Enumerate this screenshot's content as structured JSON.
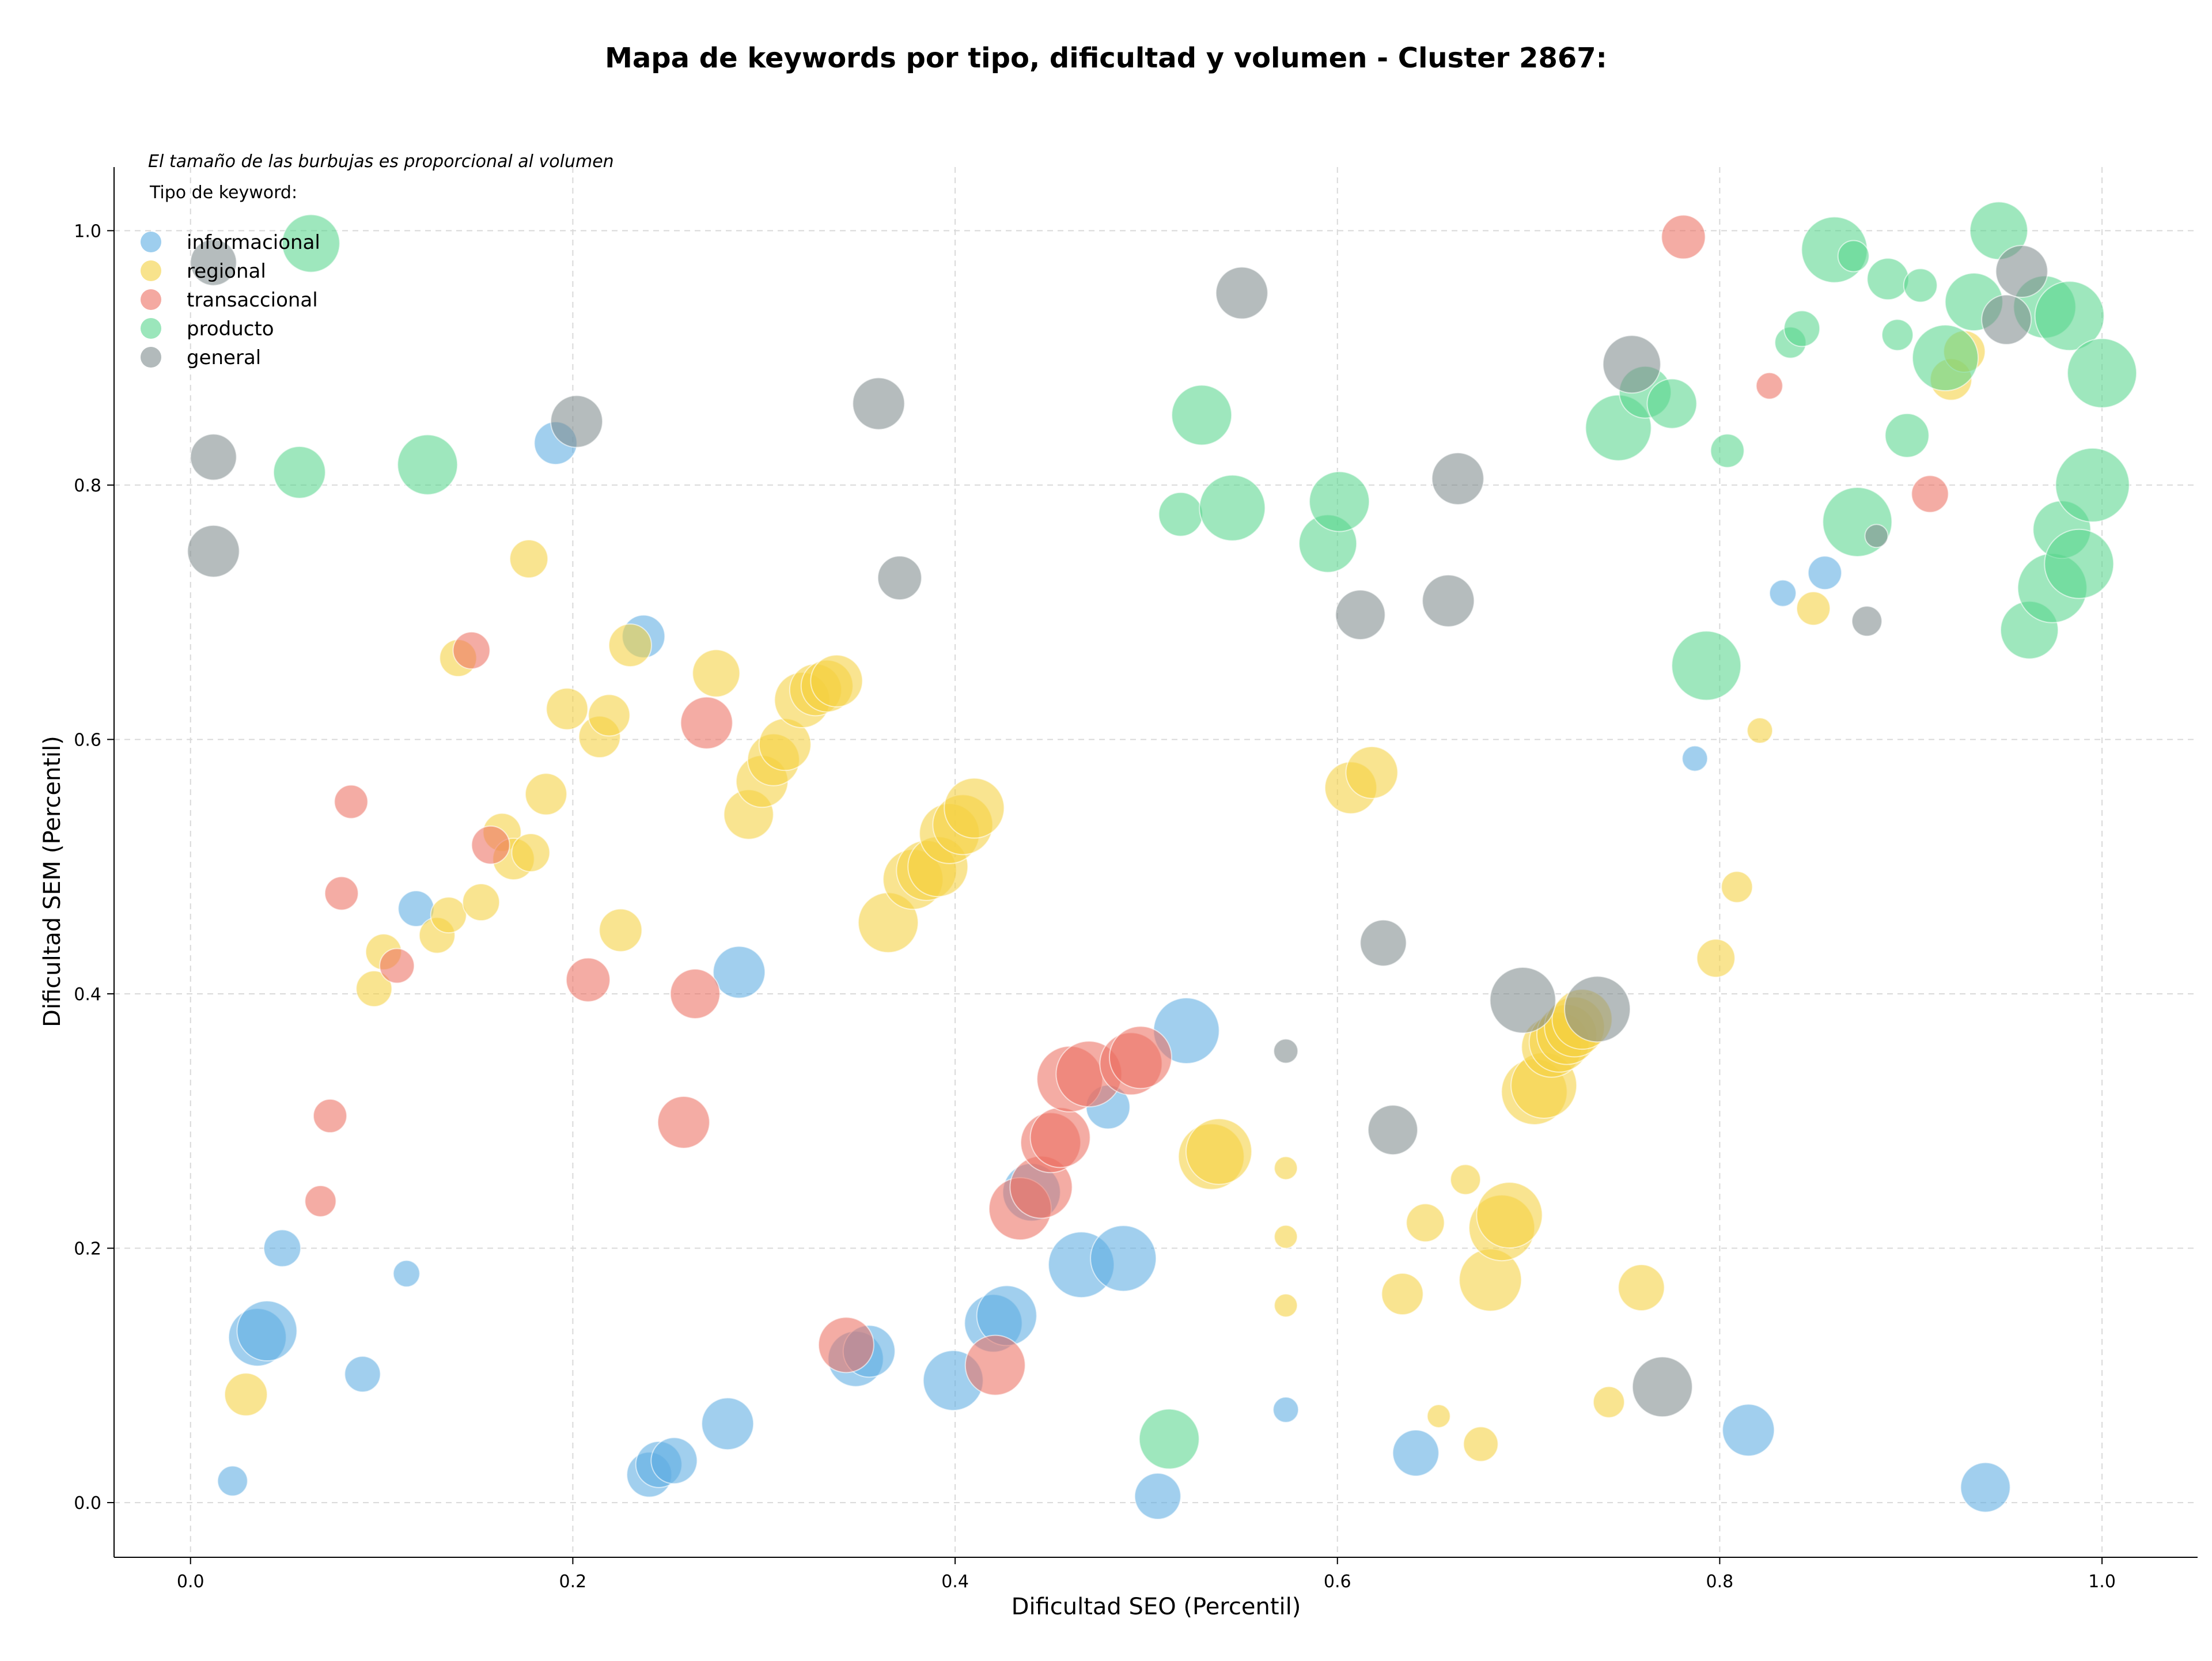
{
  "chart_data": {
    "type": "scatter",
    "title": "Mapa de keywords por tipo, dificultad y volumen - Cluster 2867:",
    "xlabel": "Dificultad SEO (Percentil)",
    "ylabel": "Dificultad SEM (Percentil)",
    "xlim": [
      -0.04,
      1.05
    ],
    "ylim": [
      -0.043,
      1.05
    ],
    "xticks": [
      0.0,
      0.2,
      0.4,
      0.6,
      0.8,
      1.0
    ],
    "yticks": [
      0.0,
      0.2,
      0.4,
      0.6,
      0.8,
      1.0
    ],
    "xtick_labels": [
      "0.0",
      "0.2",
      "0.4",
      "0.6",
      "0.8",
      "1.0"
    ],
    "ytick_labels": [
      "0.0",
      "0.2",
      "0.4",
      "0.6",
      "0.8",
      "1.0"
    ],
    "grid": true,
    "note": "El tamaño de las burbujas es proporcional al volumen",
    "legend": {
      "title": "Tipo de keyword:",
      "placement": "top-left"
    },
    "series": [
      {
        "name": "informacional",
        "color": "#5dade2",
        "points": [
          [
            0.022,
            0.017,
            26
          ],
          [
            0.035,
            0.13,
            50
          ],
          [
            0.04,
            0.135,
            52
          ],
          [
            0.048,
            0.2,
            32
          ],
          [
            0.09,
            0.101,
            31
          ],
          [
            0.113,
            0.18,
            23
          ],
          [
            0.118,
            0.467,
            31
          ],
          [
            0.191,
            0.833,
            37
          ],
          [
            0.237,
            0.681,
            37
          ],
          [
            0.24,
            0.022,
            39
          ],
          [
            0.245,
            0.03,
            40
          ],
          [
            0.253,
            0.033,
            40
          ],
          [
            0.281,
            0.062,
            45
          ],
          [
            0.287,
            0.417,
            45
          ],
          [
            0.348,
            0.113,
            48
          ],
          [
            0.355,
            0.119,
            45
          ],
          [
            0.399,
            0.096,
            52
          ],
          [
            0.42,
            0.141,
            50
          ],
          [
            0.427,
            0.147,
            52
          ],
          [
            0.44,
            0.244,
            50
          ],
          [
            0.466,
            0.187,
            57
          ],
          [
            0.48,
            0.311,
            38
          ],
          [
            0.488,
            0.192,
            57
          ],
          [
            0.506,
            0.005,
            40
          ],
          [
            0.521,
            0.371,
            57
          ],
          [
            0.573,
            0.073,
            22
          ],
          [
            0.641,
            0.039,
            40
          ],
          [
            0.787,
            0.585,
            22
          ],
          [
            0.815,
            0.057,
            45
          ],
          [
            0.833,
            0.715,
            23
          ],
          [
            0.855,
            0.731,
            29
          ],
          [
            0.939,
            0.012,
            43
          ]
        ]
      },
      {
        "name": "regional",
        "color": "#f4d03f",
        "points": [
          [
            0.029,
            0.085,
            37
          ],
          [
            0.096,
            0.404,
            31
          ],
          [
            0.101,
            0.433,
            31
          ],
          [
            0.129,
            0.446,
            31
          ],
          [
            0.135,
            0.462,
            31
          ],
          [
            0.14,
            0.664,
            32
          ],
          [
            0.152,
            0.472,
            32
          ],
          [
            0.163,
            0.527,
            33
          ],
          [
            0.169,
            0.506,
            36
          ],
          [
            0.177,
            0.742,
            33
          ],
          [
            0.178,
            0.511,
            33
          ],
          [
            0.186,
            0.557,
            36
          ],
          [
            0.197,
            0.624,
            36
          ],
          [
            0.214,
            0.602,
            36
          ],
          [
            0.219,
            0.619,
            36
          ],
          [
            0.225,
            0.45,
            37
          ],
          [
            0.23,
            0.674,
            37
          ],
          [
            0.275,
            0.652,
            41
          ],
          [
            0.292,
            0.541,
            43
          ],
          [
            0.299,
            0.567,
            45
          ],
          [
            0.305,
            0.584,
            45
          ],
          [
            0.311,
            0.596,
            45
          ],
          [
            0.32,
            0.631,
            48
          ],
          [
            0.327,
            0.639,
            45
          ],
          [
            0.333,
            0.642,
            45
          ],
          [
            0.338,
            0.646,
            45
          ],
          [
            0.365,
            0.456,
            52
          ],
          [
            0.378,
            0.49,
            52
          ],
          [
            0.385,
            0.497,
            52
          ],
          [
            0.391,
            0.5,
            52
          ],
          [
            0.397,
            0.526,
            52
          ],
          [
            0.404,
            0.533,
            52
          ],
          [
            0.41,
            0.546,
            52
          ],
          [
            0.534,
            0.272,
            57
          ],
          [
            0.538,
            0.276,
            57
          ],
          [
            0.573,
            0.263,
            20
          ],
          [
            0.573,
            0.209,
            20
          ],
          [
            0.573,
            0.155,
            20
          ],
          [
            0.607,
            0.562,
            45
          ],
          [
            0.618,
            0.574,
            45
          ],
          [
            0.634,
            0.164,
            36
          ],
          [
            0.646,
            0.22,
            33
          ],
          [
            0.653,
            0.068,
            20
          ],
          [
            0.667,
            0.254,
            26
          ],
          [
            0.675,
            0.046,
            30
          ],
          [
            0.68,
            0.175,
            54
          ],
          [
            0.686,
            0.216,
            57
          ],
          [
            0.69,
            0.226,
            57
          ],
          [
            0.703,
            0.323,
            57
          ],
          [
            0.708,
            0.328,
            57
          ],
          [
            0.712,
            0.358,
            52
          ],
          [
            0.716,
            0.362,
            52
          ],
          [
            0.72,
            0.368,
            52
          ],
          [
            0.724,
            0.374,
            52
          ],
          [
            0.728,
            0.38,
            52
          ],
          [
            0.742,
            0.079,
            27
          ],
          [
            0.759,
            0.169,
            40
          ],
          [
            0.798,
            0.428,
            33
          ],
          [
            0.809,
            0.484,
            27
          ],
          [
            0.821,
            0.607,
            22
          ],
          [
            0.849,
            0.703,
            29
          ],
          [
            0.921,
            0.883,
            36
          ],
          [
            0.928,
            0.905,
            36
          ]
        ]
      },
      {
        "name": "transaccional",
        "color": "#ec7063",
        "points": [
          [
            0.068,
            0.237,
            27
          ],
          [
            0.073,
            0.304,
            29
          ],
          [
            0.079,
            0.479,
            29
          ],
          [
            0.084,
            0.551,
            29
          ],
          [
            0.108,
            0.422,
            30
          ],
          [
            0.147,
            0.67,
            32
          ],
          [
            0.157,
            0.517,
            33
          ],
          [
            0.208,
            0.411,
            38
          ],
          [
            0.258,
            0.299,
            45
          ],
          [
            0.264,
            0.4,
            43
          ],
          [
            0.27,
            0.613,
            45
          ],
          [
            0.343,
            0.124,
            48
          ],
          [
            0.421,
            0.108,
            52
          ],
          [
            0.434,
            0.231,
            54
          ],
          [
            0.445,
            0.248,
            54
          ],
          [
            0.45,
            0.283,
            52
          ],
          [
            0.455,
            0.287,
            52
          ],
          [
            0.46,
            0.333,
            57
          ],
          [
            0.47,
            0.337,
            57
          ],
          [
            0.492,
            0.345,
            54
          ],
          [
            0.497,
            0.35,
            54
          ],
          [
            0.781,
            0.995,
            38
          ],
          [
            0.826,
            0.878,
            23
          ],
          [
            0.91,
            0.793,
            32
          ]
        ]
      },
      {
        "name": "producto",
        "color": "#58d68d",
        "points": [
          [
            0.057,
            0.81,
            45
          ],
          [
            0.063,
            0.99,
            50
          ],
          [
            0.124,
            0.816,
            52
          ],
          [
            0.512,
            0.05,
            52
          ],
          [
            0.518,
            0.777,
            38
          ],
          [
            0.529,
            0.855,
            52
          ],
          [
            0.545,
            0.782,
            57
          ],
          [
            0.595,
            0.754,
            50
          ],
          [
            0.601,
            0.787,
            52
          ],
          [
            0.747,
            0.845,
            57
          ],
          [
            0.761,
            0.873,
            45
          ],
          [
            0.775,
            0.864,
            43
          ],
          [
            0.793,
            0.658,
            60
          ],
          [
            0.804,
            0.827,
            29
          ],
          [
            0.837,
            0.912,
            27
          ],
          [
            0.843,
            0.923,
            31
          ],
          [
            0.86,
            0.985,
            57
          ],
          [
            0.87,
            0.98,
            27
          ],
          [
            0.872,
            0.771,
            60
          ],
          [
            0.888,
            0.962,
            36
          ],
          [
            0.893,
            0.918,
            27
          ],
          [
            0.898,
            0.839,
            38
          ],
          [
            0.905,
            0.957,
            29
          ],
          [
            0.918,
            0.9,
            57
          ],
          [
            0.933,
            0.944,
            50
          ],
          [
            0.946,
            1.0,
            50
          ],
          [
            0.962,
            0.686,
            50
          ],
          [
            0.97,
            0.94,
            54
          ],
          [
            0.974,
            0.719,
            60
          ],
          [
            0.979,
            0.765,
            50
          ],
          [
            0.983,
            0.933,
            60
          ],
          [
            0.988,
            0.738,
            60
          ],
          [
            0.995,
            0.8,
            64
          ],
          [
            1.0,
            0.888,
            60
          ]
        ]
      },
      {
        "name": "general",
        "color": "#7f8c8d",
        "points": [
          [
            0.012,
            0.822,
            40
          ],
          [
            0.012,
            0.748,
            45
          ],
          [
            0.012,
            0.975,
            40
          ],
          [
            0.202,
            0.85,
            45
          ],
          [
            0.36,
            0.864,
            45
          ],
          [
            0.371,
            0.727,
            38
          ],
          [
            0.55,
            0.951,
            45
          ],
          [
            0.573,
            0.355,
            21
          ],
          [
            0.612,
            0.698,
            43
          ],
          [
            0.624,
            0.44,
            40
          ],
          [
            0.629,
            0.293,
            43
          ],
          [
            0.658,
            0.709,
            45
          ],
          [
            0.663,
            0.805,
            45
          ],
          [
            0.697,
            0.395,
            57
          ],
          [
            0.736,
            0.388,
            57
          ],
          [
            0.754,
            0.895,
            50
          ],
          [
            0.77,
            0.091,
            52
          ],
          [
            0.877,
            0.693,
            26
          ],
          [
            0.882,
            0.76,
            20
          ],
          [
            0.95,
            0.93,
            43
          ],
          [
            0.958,
            0.968,
            45
          ]
        ]
      }
    ]
  }
}
